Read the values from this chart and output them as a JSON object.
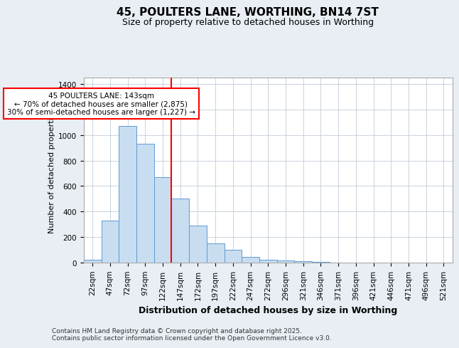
{
  "title_line1": "45, POULTERS LANE, WORTHING, BN14 7ST",
  "title_line2": "Size of property relative to detached houses in Worthing",
  "xlabel": "Distribution of detached houses by size in Worthing",
  "ylabel": "Number of detached properties",
  "bar_color": "#c8ddf0",
  "bar_edge_color": "#5b9bd5",
  "categories": [
    "22sqm",
    "47sqm",
    "72sqm",
    "97sqm",
    "122sqm",
    "147sqm",
    "172sqm",
    "197sqm",
    "222sqm",
    "247sqm",
    "272sqm",
    "296sqm",
    "321sqm",
    "346sqm",
    "371sqm",
    "396sqm",
    "421sqm",
    "446sqm",
    "471sqm",
    "496sqm",
    "521sqm"
  ],
  "values": [
    20,
    330,
    1070,
    930,
    670,
    500,
    290,
    150,
    100,
    45,
    20,
    15,
    10,
    3,
    0,
    0,
    0,
    0,
    0,
    0,
    0
  ],
  "vline_index": 5,
  "annotation_line1": "45 POULTERS LANE: 143sqm",
  "annotation_line2": "← 70% of detached houses are smaller (2,875)",
  "annotation_line3": "30% of semi-detached houses are larger (1,227) →",
  "ylim": [
    0,
    1450
  ],
  "yticks": [
    0,
    200,
    400,
    600,
    800,
    1000,
    1200,
    1400
  ],
  "footnote_line1": "Contains HM Land Registry data © Crown copyright and database right 2025.",
  "footnote_line2": "Contains public sector information licensed under the Open Government Licence v3.0.",
  "background_color": "#e8eef4",
  "plot_bg_color": "#ffffff",
  "grid_color": "#c0ccd8",
  "title_fontsize": 11,
  "subtitle_fontsize": 9,
  "xlabel_fontsize": 9,
  "ylabel_fontsize": 8,
  "tick_fontsize": 7.5,
  "annot_fontsize": 7.5,
  "footnote_fontsize": 6.5
}
